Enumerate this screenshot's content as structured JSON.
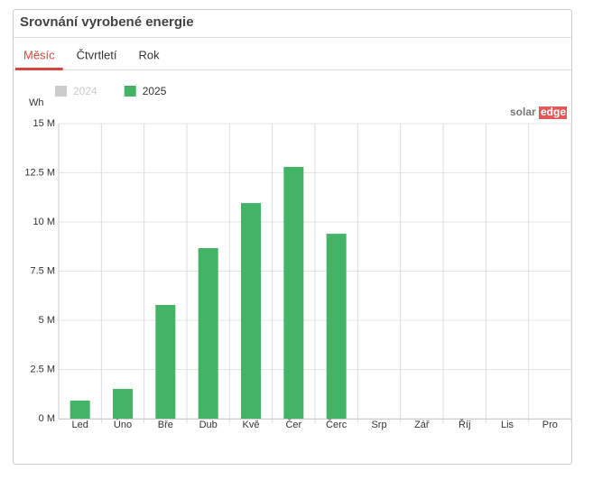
{
  "header": {
    "title": "Srovnání vyrobené energie"
  },
  "tabs": [
    {
      "label": "Měsíc",
      "active": true
    },
    {
      "label": "Čtvrtletí",
      "active": false
    },
    {
      "label": "Rok",
      "active": false
    }
  ],
  "logo": {
    "part1": "solar",
    "part2": "edge"
  },
  "chart_data": {
    "type": "bar",
    "y_label": "Wh",
    "categories": [
      "Led",
      "Úno",
      "Bře",
      "Dub",
      "Kvě",
      "Čer",
      "Čerc",
      "Srp",
      "Zář",
      "Říj",
      "Lis",
      "Pro"
    ],
    "series": [
      {
        "name": "2024",
        "color": "#cccccc",
        "hidden": true,
        "values": [
          null,
          null,
          null,
          null,
          null,
          null,
          null,
          null,
          null,
          null,
          null,
          null
        ]
      },
      {
        "name": "2025",
        "color": "#43b365",
        "values": [
          920000,
          1510000,
          5780000,
          8670000,
          10960000,
          12800000,
          9400000,
          null,
          null,
          null,
          null,
          null
        ]
      }
    ],
    "ylim": [
      0,
      15000000
    ],
    "yticks": [
      {
        "value": 0,
        "label": "0 M"
      },
      {
        "value": 2500000,
        "label": "2.5 M"
      },
      {
        "value": 5000000,
        "label": "5 M"
      },
      {
        "value": 7500000,
        "label": "7.5 M"
      },
      {
        "value": 10000000,
        "label": "10 M"
      },
      {
        "value": 12500000,
        "label": "12.5 M"
      },
      {
        "value": 15000000,
        "label": "15 M"
      }
    ],
    "grid": true,
    "legend": "top-left"
  }
}
